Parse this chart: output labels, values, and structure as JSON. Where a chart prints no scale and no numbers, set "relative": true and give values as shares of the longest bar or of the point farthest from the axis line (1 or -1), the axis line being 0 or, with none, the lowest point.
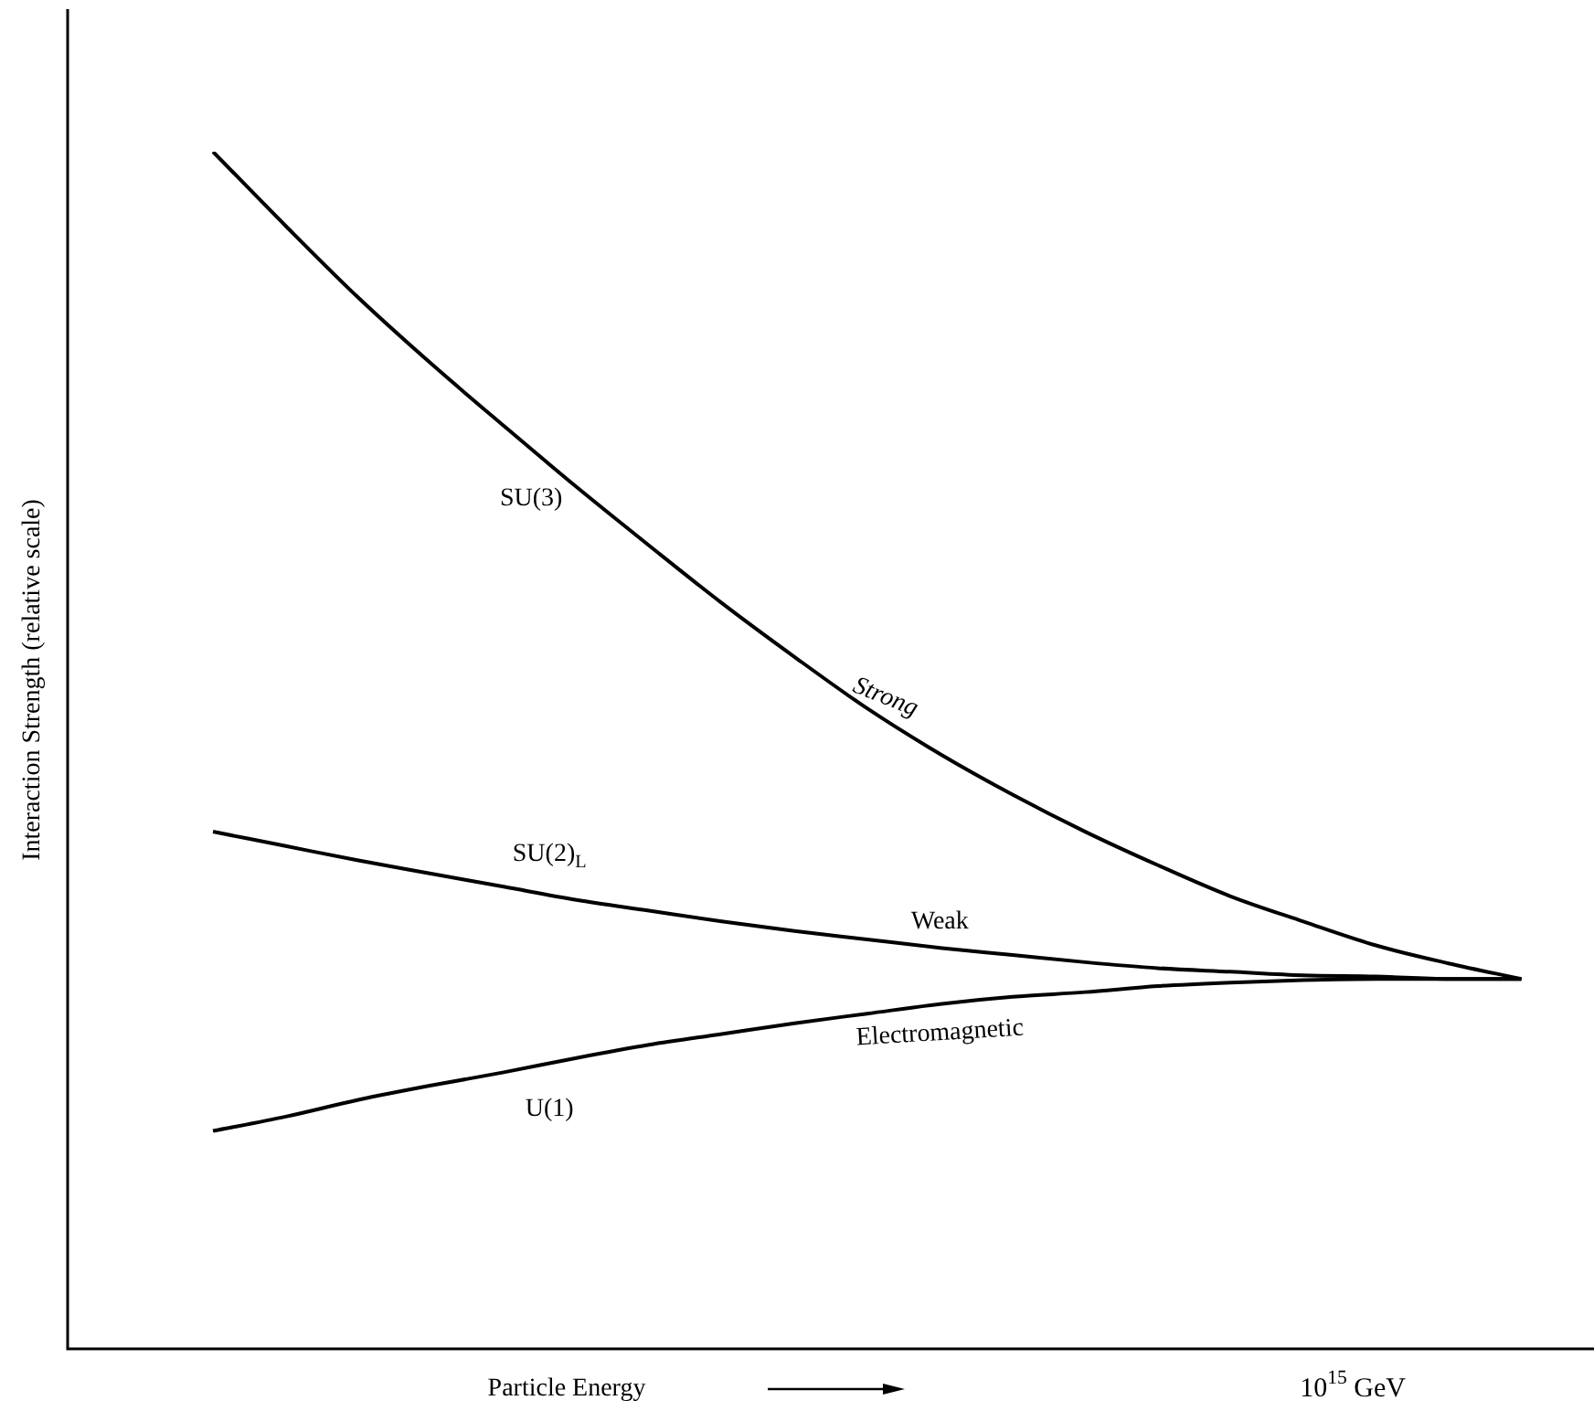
{
  "chart_data": {
    "type": "line",
    "relative": true,
    "xlabel": "Particle Energy",
    "ylabel": "Interaction Strength (relative scale)",
    "categories": [
      null,
      null,
      null,
      null,
      null,
      null,
      null,
      null,
      null,
      null,
      null,
      null,
      null,
      null,
      null,
      null,
      null,
      null,
      null,
      null,
      null,
      null
    ],
    "series": [
      {
        "name": "Strong",
        "color": "#000000",
        "values": [
          null,
          null,
          1,
          0.938,
          0.878,
          0.823,
          0.771,
          0.72,
          0.671,
          0.623,
          0.578,
          0.535,
          0.497,
          0.463,
          0.432,
          0.404,
          0.378,
          0.357,
          0.337,
          0.322,
          0.309,
          null
        ]
      },
      {
        "name": "Weak",
        "color": "#000000",
        "values": [
          null,
          null,
          0.432,
          0.42,
          0.408,
          0.397,
          0.386,
          0.375,
          0.366,
          0.357,
          0.349,
          0.342,
          0.335,
          0.329,
          0.323,
          0.318,
          0.315,
          0.312,
          0.311,
          0.309,
          0.309,
          null
        ]
      },
      {
        "name": "Electromagnetic",
        "color": "#000000",
        "values": [
          null,
          null,
          0.182,
          0.194,
          0.208,
          0.22,
          0.231,
          0.243,
          0.254,
          0.263,
          0.272,
          0.28,
          0.288,
          0.294,
          0.298,
          0.303,
          0.306,
          0.308,
          0.309,
          0.309,
          0.309,
          null
        ]
      }
    ],
    "annotations": [
      "SU(3)",
      "SU(2)$_{L}$",
      "U(1)",
      "10$^{15}$ GeV"
    ],
    "grid": false,
    "legend": false,
    "marker": "none",
    "line_style": "solid"
  }
}
